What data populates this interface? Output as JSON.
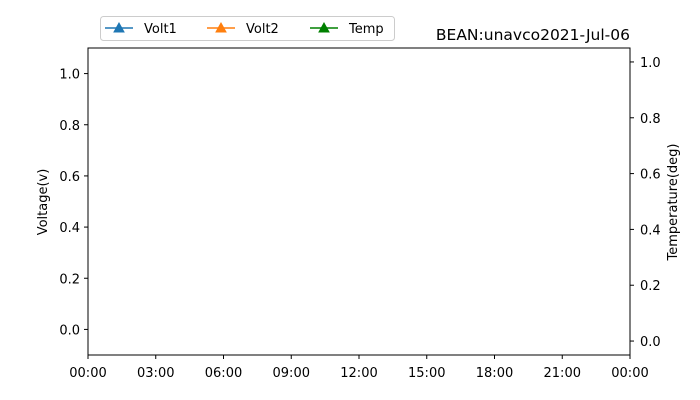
{
  "chart_data": {
    "type": "line",
    "title": "BEAN:unavco2021-Jul-06",
    "xlabel": "",
    "ylabel": "Voltage(v)",
    "y2label": "Temperature(deg)",
    "x_ticks": [
      "00:00",
      "03:00",
      "06:00",
      "09:00",
      "12:00",
      "15:00",
      "18:00",
      "21:00",
      "00:00"
    ],
    "ylim": [
      -0.1,
      1.1
    ],
    "y_ticks": [
      "0.0",
      "0.2",
      "0.4",
      "0.6",
      "0.8",
      "1.0"
    ],
    "y2lim": [
      -0.05,
      1.05
    ],
    "y2_ticks": [
      "0.0",
      "0.2",
      "0.4",
      "0.6",
      "0.8",
      "1.0"
    ],
    "grid": false,
    "legend_position": "top-left",
    "series": [
      {
        "name": "Volt1",
        "axis": "left",
        "color": "#1f77b4",
        "marker": "triangle",
        "x": [],
        "y": []
      },
      {
        "name": "Volt2",
        "axis": "left",
        "color": "#ff7f0e",
        "marker": "triangle",
        "x": [],
        "y": []
      },
      {
        "name": "Temp",
        "axis": "right",
        "color": "#008000",
        "marker": "triangle",
        "x": [],
        "y": []
      }
    ]
  }
}
